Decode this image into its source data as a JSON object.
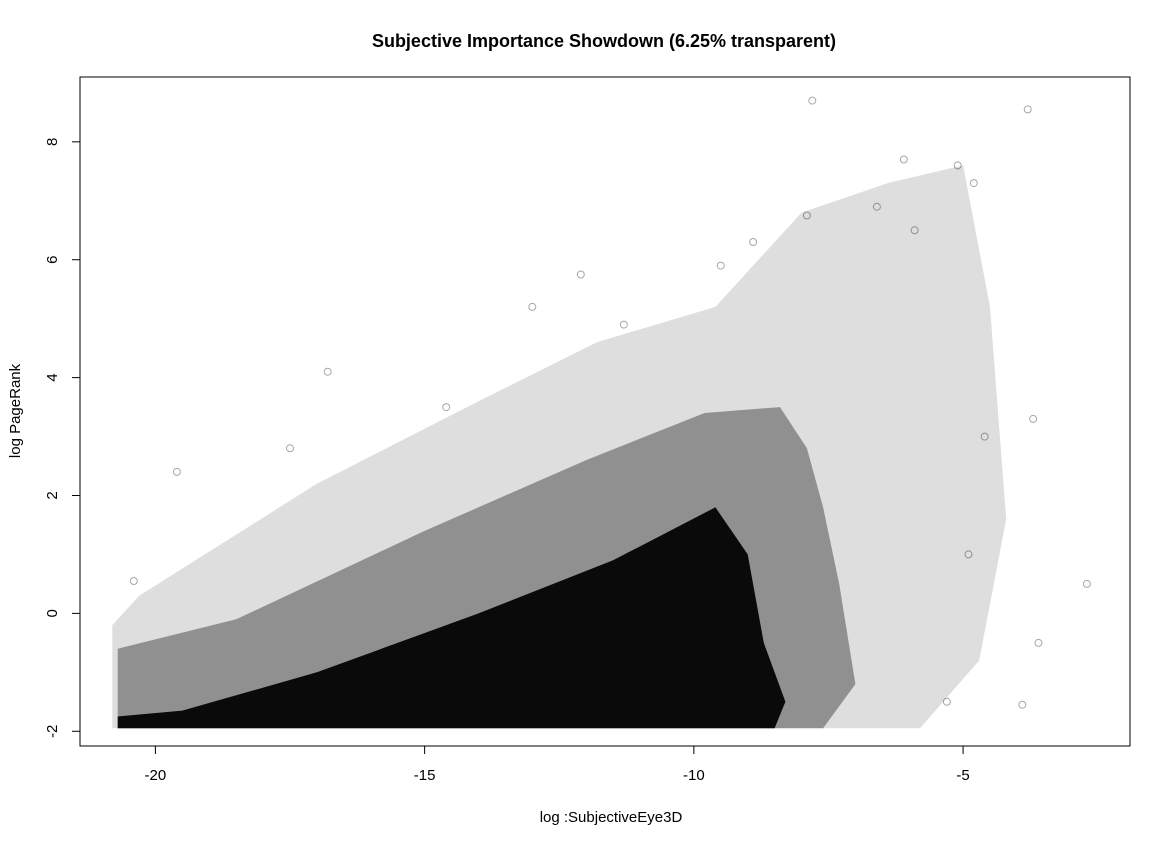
{
  "chart_data": {
    "type": "scatter",
    "title": "Subjective Importance Showdown (6.25% transparent)",
    "xlabel": "log :SubjectiveEye3D",
    "ylabel": "log PageRank",
    "xlim": [
      -21.4,
      -1.9
    ],
    "ylim": [
      -2.25,
      9.1
    ],
    "x_ticks": [
      -20,
      -15,
      -10,
      -5
    ],
    "y_ticks": [
      -2,
      0,
      2,
      4,
      6,
      8
    ],
    "x_tick_labels": [
      "-20",
      "-15",
      "-10",
      "-5"
    ],
    "y_tick_labels": [
      "-2",
      "0",
      "2",
      "4",
      "6",
      "8"
    ],
    "grid": false,
    "legend": "none",
    "point_color": "#000000",
    "point_alpha": 0.0625,
    "series": [
      {
        "dense_region_outline": [
          [
            -20.7,
            -1.95
          ],
          [
            -8.5,
            -1.95
          ],
          [
            -8.3,
            -1.5
          ],
          [
            -8.7,
            -0.5
          ],
          [
            -9.0,
            1.0
          ],
          [
            -9.6,
            1.8
          ],
          [
            -11.5,
            0.9
          ],
          [
            -14.0,
            0.0
          ],
          [
            -17.0,
            -1.0
          ],
          [
            -19.5,
            -1.65
          ],
          [
            -20.7,
            -1.75
          ]
        ],
        "mid_region_outline": [
          [
            -20.7,
            -1.95
          ],
          [
            -7.6,
            -1.95
          ],
          [
            -7.0,
            -1.2
          ],
          [
            -7.3,
            0.5
          ],
          [
            -7.6,
            1.8
          ],
          [
            -7.9,
            2.8
          ],
          [
            -8.4,
            3.5
          ],
          [
            -9.8,
            3.4
          ],
          [
            -12.0,
            2.6
          ],
          [
            -15.0,
            1.4
          ],
          [
            -18.5,
            -0.1
          ],
          [
            -20.7,
            -0.6
          ]
        ],
        "sparse_region_outline": [
          [
            -20.8,
            -1.95
          ],
          [
            -5.8,
            -1.95
          ],
          [
            -4.7,
            -0.8
          ],
          [
            -4.2,
            1.6
          ],
          [
            -4.5,
            5.2
          ],
          [
            -5.0,
            7.6
          ],
          [
            -6.4,
            7.3
          ],
          [
            -8.0,
            6.8
          ],
          [
            -9.6,
            5.2
          ],
          [
            -11.8,
            4.6
          ],
          [
            -14.0,
            3.6
          ],
          [
            -17.0,
            2.2
          ],
          [
            -20.3,
            0.3
          ],
          [
            -20.8,
            -0.2
          ]
        ],
        "outlier_points": [
          [
            -7.8,
            8.7
          ],
          [
            -3.8,
            8.55
          ],
          [
            -6.1,
            7.7
          ],
          [
            -5.1,
            7.6
          ],
          [
            -4.8,
            7.3
          ],
          [
            -7.9,
            6.75
          ],
          [
            -8.9,
            6.3
          ],
          [
            -12.1,
            5.75
          ],
          [
            -13.0,
            5.2
          ],
          [
            -16.8,
            4.1
          ],
          [
            -19.6,
            2.4
          ],
          [
            -20.4,
            0.55
          ],
          [
            -2.7,
            0.5
          ],
          [
            -3.6,
            -0.5
          ],
          [
            -3.9,
            -1.55
          ],
          [
            -5.3,
            -1.5
          ],
          [
            -3.7,
            3.3
          ],
          [
            -4.6,
            3.0
          ],
          [
            -4.9,
            1.0
          ],
          [
            -6.6,
            6.9
          ],
          [
            -5.9,
            6.5
          ],
          [
            -9.5,
            5.9
          ],
          [
            -11.3,
            4.9
          ],
          [
            -14.6,
            3.5
          ],
          [
            -17.5,
            2.8
          ]
        ]
      }
    ]
  }
}
